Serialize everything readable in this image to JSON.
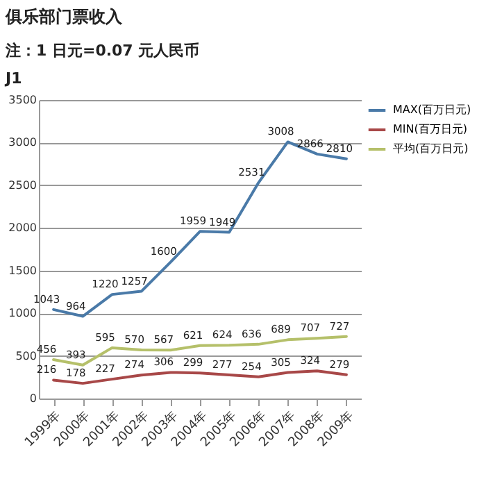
{
  "chart_data": {
    "type": "line",
    "title": "俱乐部门票收入",
    "subtitle": "注：1 日元=0.07 元人民币",
    "annotations": [
      "J1"
    ],
    "categories": [
      "1999年",
      "2000年",
      "2001年",
      "2002年",
      "2003年",
      "2004年",
      "2005年",
      "2006年",
      "2007年",
      "2008年",
      "2009年"
    ],
    "series": [
      {
        "name": "MAX(百万日元)",
        "color": "#4a7aa8",
        "values": [
          1043,
          964,
          1220,
          1257,
          1600,
          1959,
          1949,
          2531,
          3008,
          2866,
          2810
        ]
      },
      {
        "name": "MIN(百万日元)",
        "color": "#a84848",
        "values": [
          216,
          178,
          227,
          274,
          306,
          299,
          277,
          254,
          305,
          324,
          279
        ]
      },
      {
        "name": "平均(百万日元)",
        "color": "#b5c06a",
        "values": [
          456,
          393,
          595,
          570,
          567,
          621,
          624,
          636,
          689,
          707,
          727
        ]
      }
    ],
    "ylim": [
      0,
      3500
    ],
    "yticks": [
      0,
      500,
      1000,
      1500,
      2000,
      2500,
      3000,
      3500
    ],
    "grid": "y",
    "legend": "right",
    "data_labels": true,
    "marker": "none",
    "line_style": "solid"
  }
}
